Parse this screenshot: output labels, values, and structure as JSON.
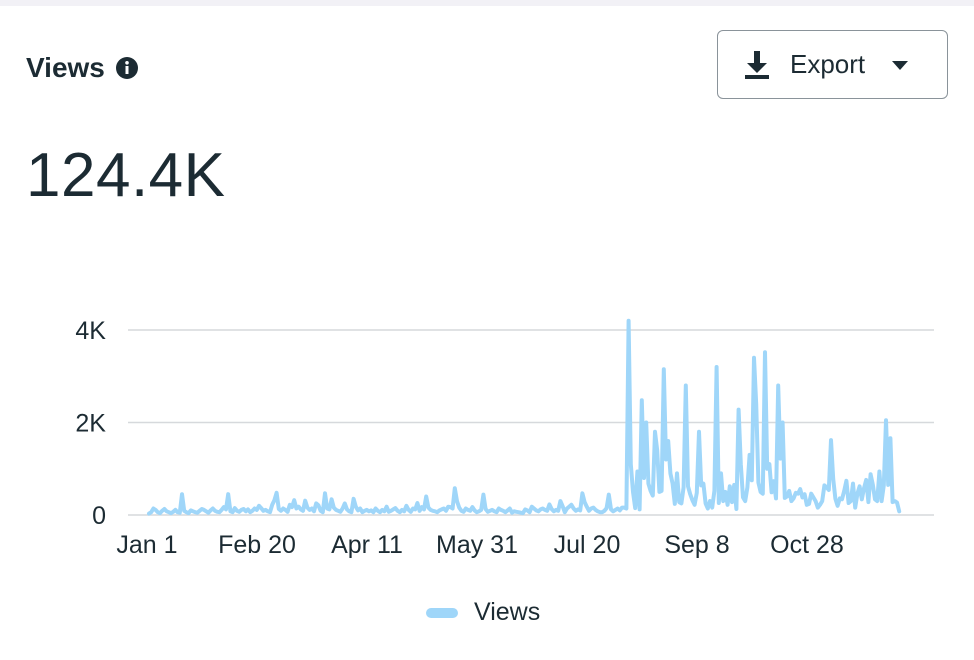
{
  "header": {
    "title": "Views",
    "info_icon": "info-icon",
    "export_label": "Export",
    "export_icon": "download-icon",
    "export_caret_icon": "caret-down-icon"
  },
  "summary": {
    "total": "124.4K"
  },
  "colors": {
    "series": "#9fd6f9",
    "grid": "#d6d9dc",
    "text": "#1c2b33"
  },
  "chart_data": {
    "type": "line",
    "title": "",
    "xlabel": "",
    "ylabel": "",
    "x_start": "Jan 1",
    "x_ticks": [
      "Jan 1",
      "Feb 20",
      "Apr 11",
      "May 31",
      "Jul 20",
      "Sep 8",
      "Oct 28"
    ],
    "y_ticks": [
      "0",
      "2K",
      "4K"
    ],
    "y_tick_values": [
      0,
      2000,
      4000
    ],
    "ylim": [
      0,
      4000
    ],
    "grid": true,
    "legend": "bottom-center",
    "series": [
      {
        "name": "Views",
        "values": [
          30,
          60,
          140,
          110,
          60,
          40,
          90,
          130,
          80,
          60,
          40,
          70,
          110,
          60,
          50,
          450,
          90,
          60,
          40,
          100,
          80,
          60,
          50,
          90,
          130,
          110,
          80,
          50,
          100,
          140,
          90,
          70,
          60,
          110,
          170,
          120,
          450,
          80,
          60,
          150,
          90,
          70,
          110,
          130,
          80,
          120,
          60,
          90,
          140,
          110,
          200,
          150,
          90,
          110,
          80,
          60,
          220,
          320,
          480,
          130,
          90,
          140,
          110,
          70,
          220,
          170,
          320,
          140,
          180,
          120,
          90,
          310,
          160,
          110,
          140,
          80,
          250,
          210,
          90,
          60,
          470,
          140,
          120,
          340,
          160,
          110,
          90,
          70,
          140,
          250,
          120,
          80,
          60,
          350,
          180,
          100,
          140,
          60,
          90,
          110,
          80,
          100,
          60,
          140,
          90,
          60,
          110,
          80,
          180,
          70,
          90,
          120,
          150,
          90,
          60,
          110,
          80,
          200,
          110,
          70,
          140,
          120,
          260,
          90,
          170,
          120,
          400,
          160,
          110,
          90,
          80,
          60,
          100,
          120,
          140,
          90,
          180,
          170,
          140,
          580,
          300,
          160,
          90,
          70,
          140,
          110,
          90,
          170,
          100,
          60,
          80,
          110,
          440,
          130,
          70,
          90,
          110,
          80,
          60,
          140,
          110,
          90,
          60,
          100,
          140,
          50,
          80,
          70,
          60,
          50,
          40,
          120,
          100,
          60,
          180,
          140,
          100,
          80,
          120,
          140,
          110,
          90,
          230,
          130,
          80,
          110,
          90,
          300,
          190,
          60,
          140,
          180,
          220,
          140,
          90,
          120,
          100,
          470,
          280,
          180,
          90,
          140,
          160,
          110,
          80,
          60,
          60,
          90,
          150,
          440,
          120,
          80,
          110,
          140,
          100,
          160,
          160,
          140,
          4200,
          1100,
          500,
          150,
          940,
          120,
          2480,
          800,
          2000,
          680,
          520,
          420,
          1800,
          1400,
          500,
          520,
          3150,
          1200,
          1600,
          900,
          680,
          240,
          900,
          280,
          250,
          600,
          2800,
          620,
          450,
          320,
          220,
          480,
          1800,
          640,
          680,
          250,
          140,
          300,
          160,
          520,
          3200,
          260,
          900,
          300,
          500,
          220,
          620,
          280,
          650,
          130,
          2280,
          1100,
          380,
          300,
          600,
          1300,
          750,
          3400,
          2400,
          700,
          500,
          460,
          3520,
          1000,
          1100,
          490,
          730,
          360,
          2800,
          1220,
          2000,
          370,
          400,
          520,
          300,
          360,
          480,
          460,
          560,
          380,
          450,
          220,
          240,
          460,
          380,
          300,
          160,
          220,
          300,
          640,
          600,
          540,
          1620,
          780,
          350,
          200,
          360,
          340,
          520,
          740,
          260,
          300,
          680,
          160,
          460,
          620,
          340,
          580,
          760,
          280,
          880,
          660,
          340,
          300,
          940,
          300,
          640,
          2050,
          650,
          1660,
          280,
          300,
          270,
          80
        ]
      }
    ]
  }
}
